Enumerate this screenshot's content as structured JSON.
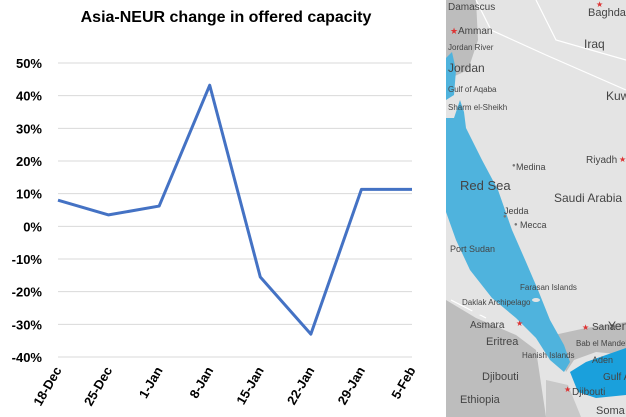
{
  "chart_data": {
    "type": "line",
    "title": "Asia-NEUR change in offered capacity",
    "xlabel": "",
    "ylabel": "",
    "categories": [
      "18-Dec",
      "25-Dec",
      "1-Jan",
      "8-Jan",
      "15-Jan",
      "22-Jan",
      "29-Jan",
      "5-Feb"
    ],
    "series": [
      {
        "values": [
          8,
          3.5,
          6.2,
          43.2,
          -15.5,
          -33,
          11.3,
          11.3
        ]
      }
    ],
    "ylim": [
      -40,
      50
    ],
    "yticks": [
      "50%",
      "40%",
      "30%",
      "20%",
      "10%",
      "0%",
      "-10%",
      "-20%",
      "-30%",
      "-40%"
    ],
    "grid": "horizontal",
    "colors": {
      "line": "#4472c4",
      "grid": "#d9d9d9"
    }
  },
  "map": {
    "labels": {
      "damascus": "Damascus",
      "baghdad": "Baghdad",
      "amman": "Amman",
      "iraq": "Iraq",
      "jordan": "Jordan",
      "jordan_river": "Jordan River",
      "kuwait": "Kuw",
      "gulf_of_aqaba": "Gulf of Aqaba",
      "sharm": "Sharm el-Sheikh",
      "medina": "Medina",
      "riyadh": "Riyadh",
      "red_sea": "Red Sea",
      "saudi_arabia": "Saudi Arabia",
      "jedda": "Jedda",
      "mecca": "Mecca",
      "port_sudan": "Port Sudan",
      "farasan": "Farasan Islands",
      "dahlak": "Daklak Archipelago",
      "asmara": "Asmara",
      "sana": "Sana",
      "yemen": "Yen",
      "eritrea": "Eritrea",
      "bab": "Bab el Mandeb",
      "aden": "Aden",
      "hanish": "Hanish Islands",
      "gulf_aden": "Gulf Ade",
      "djibouti_country": "Djibouti",
      "djibouti_city": "Djibouti",
      "ethiopia": "Ethiopia",
      "somalia": "Soma"
    }
  }
}
